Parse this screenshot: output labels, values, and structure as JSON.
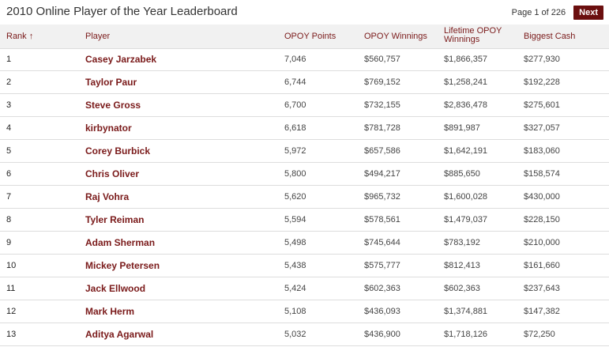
{
  "title": "2010 Online Player of the Year Leaderboard",
  "pager": {
    "info": "Page 1 of 226",
    "next_label": "Next"
  },
  "columns": {
    "rank": "Rank ↑",
    "player": "Player",
    "points": "OPOY Points",
    "winnings": "OPOY Winnings",
    "lifetime": "Lifetime OPOY Winnings",
    "biggest": "Biggest Cash"
  },
  "rows": [
    {
      "rank": "1",
      "player": "Casey Jarzabek",
      "points": "7,046",
      "winnings": "$560,757",
      "lifetime": "$1,866,357",
      "biggest": "$277,930"
    },
    {
      "rank": "2",
      "player": "Taylor Paur",
      "points": "6,744",
      "winnings": "$769,152",
      "lifetime": "$1,258,241",
      "biggest": "$192,228"
    },
    {
      "rank": "3",
      "player": "Steve Gross",
      "points": "6,700",
      "winnings": "$732,155",
      "lifetime": "$2,836,478",
      "biggest": "$275,601"
    },
    {
      "rank": "4",
      "player": "kirbynator",
      "points": "6,618",
      "winnings": "$781,728",
      "lifetime": "$891,987",
      "biggest": "$327,057"
    },
    {
      "rank": "5",
      "player": "Corey Burbick",
      "points": "5,972",
      "winnings": "$657,586",
      "lifetime": "$1,642,191",
      "biggest": "$183,060"
    },
    {
      "rank": "6",
      "player": "Chris Oliver",
      "points": "5,800",
      "winnings": "$494,217",
      "lifetime": "$885,650",
      "biggest": "$158,574"
    },
    {
      "rank": "7",
      "player": "Raj Vohra",
      "points": "5,620",
      "winnings": "$965,732",
      "lifetime": "$1,600,028",
      "biggest": "$430,000"
    },
    {
      "rank": "8",
      "player": "Tyler Reiman",
      "points": "5,594",
      "winnings": "$578,561",
      "lifetime": "$1,479,037",
      "biggest": "$228,150"
    },
    {
      "rank": "9",
      "player": "Adam Sherman",
      "points": "5,498",
      "winnings": "$745,644",
      "lifetime": "$783,192",
      "biggest": "$210,000"
    },
    {
      "rank": "10",
      "player": "Mickey Petersen",
      "points": "5,438",
      "winnings": "$575,777",
      "lifetime": "$812,413",
      "biggest": "$161,660"
    },
    {
      "rank": "11",
      "player": "Jack Ellwood",
      "points": "5,424",
      "winnings": "$602,363",
      "lifetime": "$602,363",
      "biggest": "$237,643"
    },
    {
      "rank": "12",
      "player": "Mark Herm",
      "points": "5,108",
      "winnings": "$436,093",
      "lifetime": "$1,374,881",
      "biggest": "$147,382"
    },
    {
      "rank": "13",
      "player": "Aditya Agarwal",
      "points": "5,032",
      "winnings": "$436,900",
      "lifetime": "$1,718,126",
      "biggest": "$72,250"
    }
  ]
}
